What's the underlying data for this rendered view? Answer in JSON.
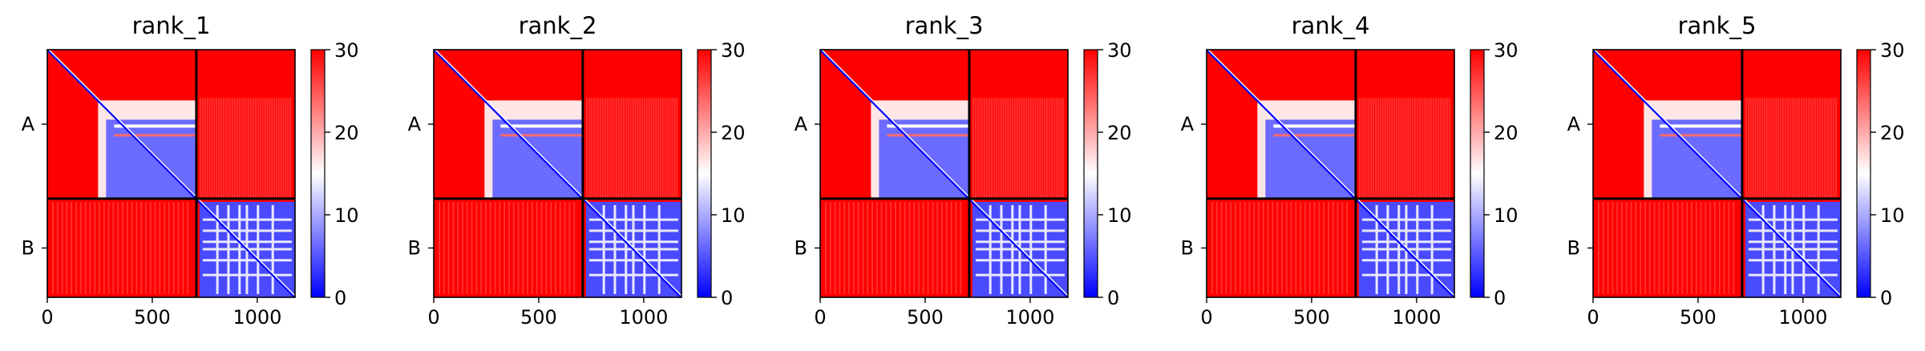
{
  "chart_data": [
    {
      "type": "heatmap",
      "title": "rank_1",
      "x_ticks": [
        0,
        500,
        1000
      ],
      "xlim": [
        0,
        1180
      ],
      "row_labels": [
        "A",
        "B"
      ],
      "chain_boundary": 710,
      "colorbar": {
        "min": 0,
        "max": 30,
        "ticks": [
          0,
          10,
          20,
          30
        ],
        "colormap": "bwr"
      },
      "grid": false
    },
    {
      "type": "heatmap",
      "title": "rank_2",
      "x_ticks": [
        0,
        500,
        1000
      ],
      "xlim": [
        0,
        1180
      ],
      "row_labels": [
        "A",
        "B"
      ],
      "chain_boundary": 710,
      "colorbar": {
        "min": 0,
        "max": 30,
        "ticks": [
          0,
          10,
          20,
          30
        ],
        "colormap": "bwr"
      },
      "grid": false
    },
    {
      "type": "heatmap",
      "title": "rank_3",
      "x_ticks": [
        0,
        500,
        1000
      ],
      "xlim": [
        0,
        1180
      ],
      "row_labels": [
        "A",
        "B"
      ],
      "chain_boundary": 710,
      "colorbar": {
        "min": 0,
        "max": 30,
        "ticks": [
          0,
          10,
          20,
          30
        ],
        "colormap": "bwr"
      },
      "grid": false
    },
    {
      "type": "heatmap",
      "title": "rank_4",
      "x_ticks": [
        0,
        500,
        1000
      ],
      "xlim": [
        0,
        1180
      ],
      "row_labels": [
        "A",
        "B"
      ],
      "chain_boundary": 710,
      "colorbar": {
        "min": 0,
        "max": 30,
        "ticks": [
          0,
          10,
          20,
          30
        ],
        "colormap": "bwr"
      },
      "grid": false
    },
    {
      "type": "heatmap",
      "title": "rank_5",
      "x_ticks": [
        0,
        500,
        1000
      ],
      "xlim": [
        0,
        1180
      ],
      "row_labels": [
        "A",
        "B"
      ],
      "chain_boundary": 710,
      "colorbar": {
        "min": 0,
        "max": 30,
        "ticks": [
          0,
          10,
          20,
          30
        ],
        "colormap": "bwr"
      },
      "grid": false
    }
  ],
  "colors": {
    "high": "#ff0000",
    "mid": "#ffffff",
    "low": "#0000ff",
    "axis": "#000000"
  }
}
